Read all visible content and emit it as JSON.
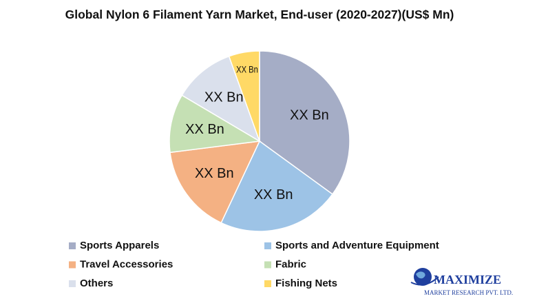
{
  "chart_data": {
    "type": "pie",
    "title": "Global Nylon 6 Filament Yarn Market, End-user (2020-2027)(US$ Mn)",
    "categories": [
      "Sports Apparels",
      "Sports and Adventure Equipment",
      "Travel Accessories",
      "Fabric",
      "Others",
      "Fishing Nets"
    ],
    "values": [
      35,
      22,
      16,
      10.5,
      11,
      5.5
    ],
    "value_labels": [
      "XX Bn",
      "XX Bn",
      "XX Bn",
      "XX Bn",
      "XX Bn",
      "XX Bn"
    ],
    "colors": [
      "#a5adc6",
      "#9dc3e6",
      "#f4b183",
      "#c5e0b4",
      "#dae0ec",
      "#ffd966"
    ]
  },
  "logo": {
    "name": "MAXIMIZE",
    "tagline": "MARKET RESEARCH PVT. LTD."
  }
}
